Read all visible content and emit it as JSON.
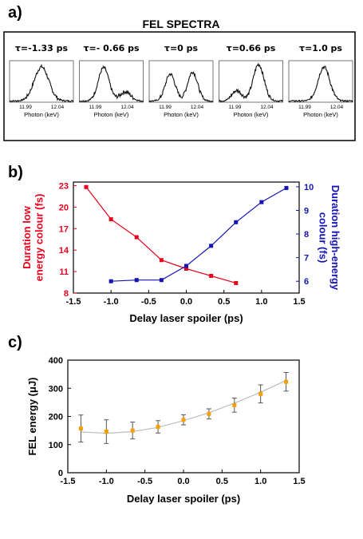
{
  "chart_data": [
    {
      "panel": "a)",
      "type": "line",
      "title": "FEL SPECTRA",
      "subplots": [
        {
          "label": "τ=-1.33 ps",
          "xticks": [
            "11.99",
            "12.04"
          ],
          "xlabel": "Photon (keV)",
          "peaks": [
            {
              "center": 0.5,
              "height": 0.82,
              "width": 0.16
            }
          ]
        },
        {
          "label": "τ=- 0.66 ps",
          "xticks": [
            "11.99",
            "12.04"
          ],
          "xlabel": "Photon (keV)",
          "peaks": [
            {
              "center": 0.38,
              "height": 0.8,
              "width": 0.12
            },
            {
              "center": 0.72,
              "height": 0.22,
              "width": 0.12
            }
          ]
        },
        {
          "label": "τ=0 ps",
          "xticks": [
            "11.99",
            "12.04"
          ],
          "xlabel": "Photon (keV)",
          "peaks": [
            {
              "center": 0.33,
              "height": 0.65,
              "width": 0.11
            },
            {
              "center": 0.68,
              "height": 0.7,
              "width": 0.11
            }
          ]
        },
        {
          "label": "τ=0.66 ps",
          "xticks": [
            "11.99",
            "12.04"
          ],
          "xlabel": "Photon (keV)",
          "peaks": [
            {
              "center": 0.28,
              "height": 0.25,
              "width": 0.11
            },
            {
              "center": 0.62,
              "height": 0.88,
              "width": 0.12
            }
          ]
        },
        {
          "label": "τ=1.0 ps",
          "xticks": [
            "11.99",
            "12.04"
          ],
          "xlabel": "Photon (keV)",
          "peaks": [
            {
              "center": 0.55,
              "height": 0.82,
              "width": 0.13
            }
          ]
        }
      ]
    },
    {
      "panel": "b)",
      "type": "line",
      "xlabel": "Delay laser spoiler (ps)",
      "ylabel": "Duration low energy colour (fs)",
      "ylabel_lines": [
        "Duration low",
        "energy colour (fs)"
      ],
      "y2label": "Duration high-energy colour (fs)",
      "y2label_lines": [
        "Duration high-energy",
        "colour (fs)"
      ],
      "xlim": [
        -1.5,
        1.5
      ],
      "xticks": [
        -1.5,
        -1.0,
        -0.5,
        0.0,
        0.5,
        1.0,
        1.5
      ],
      "xtick_labels": [
        "-1.5",
        "-1.0",
        "-0.5",
        "0.0",
        "0.5",
        "1.0",
        "1.5"
      ],
      "ylim": [
        8,
        23.5
      ],
      "yticks": [
        8,
        11,
        14,
        17,
        20,
        23
      ],
      "y2lim": [
        5.5,
        10.2
      ],
      "y2ticks": [
        6,
        7,
        8,
        9,
        10
      ],
      "series": [
        {
          "color": "#e8001c",
          "axis": "left",
          "x": [
            -1.33,
            -1.0,
            -0.66,
            -0.33,
            0.0,
            0.33,
            0.66
          ],
          "y": [
            22.8,
            18.3,
            15.8,
            12.6,
            11.4,
            10.4,
            9.4
          ]
        },
        {
          "color": "#1414b4",
          "axis": "right",
          "x": [
            -1.0,
            -0.66,
            -0.33,
            0.0,
            0.33,
            0.66,
            1.0,
            1.33
          ],
          "y": [
            6.0,
            6.05,
            6.05,
            6.65,
            7.5,
            8.5,
            9.35,
            9.95
          ]
        }
      ]
    },
    {
      "panel": "c)",
      "type": "scatter",
      "xlabel": "Delay laser spoiler (ps)",
      "ylabel": "FEL energy (μJ)",
      "xlim": [
        -1.5,
        1.5
      ],
      "xticks": [
        -1.5,
        -1.0,
        -0.5,
        0.0,
        0.5,
        1.0,
        1.5
      ],
      "xtick_labels": [
        "-1.5",
        "-1.0",
        "-0.5",
        "0.0",
        "0.5",
        "1.0",
        "1.5"
      ],
      "ylim": [
        0,
        400
      ],
      "yticks": [
        0,
        100,
        200,
        300,
        400
      ],
      "marker_color": "#f5a000",
      "points": [
        {
          "x": -1.33,
          "y": 157,
          "err": 48
        },
        {
          "x": -1.0,
          "y": 146,
          "err": 42
        },
        {
          "x": -0.66,
          "y": 150,
          "err": 30
        },
        {
          "x": -0.33,
          "y": 163,
          "err": 22
        },
        {
          "x": 0.0,
          "y": 188,
          "err": 18
        },
        {
          "x": 0.33,
          "y": 209,
          "err": 18
        },
        {
          "x": 0.66,
          "y": 240,
          "err": 25
        },
        {
          "x": 1.0,
          "y": 280,
          "err": 32
        },
        {
          "x": 1.33,
          "y": 323,
          "err": 33
        }
      ],
      "fit_y": [
        145,
        140,
        146,
        161,
        185,
        213,
        247,
        286,
        328
      ]
    }
  ]
}
